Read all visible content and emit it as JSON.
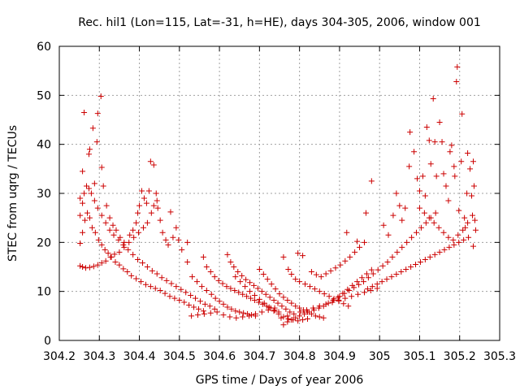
{
  "chart_data": {
    "type": "scatter",
    "title": "Rec. hil1 (Lon=115, Lat=-31, h=HE), days 304-305, 2006, window 001",
    "xlabel": "GPS time / Days of year 2006",
    "ylabel": "STEC from uqrg / TECUs",
    "xlim": [
      304.2,
      305.3
    ],
    "ylim": [
      0,
      60
    ],
    "x_ticks": [
      304.2,
      304.3,
      304.4,
      304.5,
      304.6,
      304.7,
      304.8,
      304.9,
      305,
      305.1,
      305.2,
      305.3
    ],
    "x_tick_labels": [
      "304.2",
      "304.3",
      "304.4",
      "304.5",
      "304.6",
      "304.7",
      "304.8",
      "304.9",
      "305",
      "305.1",
      "305.2",
      "305.3"
    ],
    "y_ticks": [
      0,
      10,
      20,
      30,
      40,
      50,
      60
    ],
    "y_tick_labels": [
      "0",
      "10",
      "20",
      "30",
      "40",
      "50",
      "60"
    ],
    "grid": true,
    "marker": "+",
    "color": "#cc0000",
    "points": [
      [
        304.252,
        15.2
      ],
      [
        304.258,
        15.0
      ],
      [
        304.266,
        14.8
      ],
      [
        304.276,
        14.9
      ],
      [
        304.286,
        15.1
      ],
      [
        304.296,
        15.4
      ],
      [
        304.306,
        15.8
      ],
      [
        304.316,
        16.2
      ],
      [
        304.328,
        17.0
      ],
      [
        304.338,
        17.6
      ],
      [
        304.35,
        18.0
      ],
      [
        304.362,
        19.0
      ],
      [
        304.374,
        20.0
      ],
      [
        304.386,
        21.0
      ],
      [
        304.398,
        22.0
      ],
      [
        304.41,
        23.0
      ],
      [
        304.42,
        24.0
      ],
      [
        304.43,
        26.0
      ],
      [
        304.436,
        27.5
      ],
      [
        304.444,
        28.5
      ],
      [
        304.252,
        19.8
      ],
      [
        304.258,
        22.0
      ],
      [
        304.264,
        24.5
      ],
      [
        304.27,
        26.0
      ],
      [
        304.276,
        25.0
      ],
      [
        304.282,
        23.0
      ],
      [
        304.29,
        22.0
      ],
      [
        304.298,
        20.5
      ],
      [
        304.306,
        19.5
      ],
      [
        304.314,
        18.5
      ],
      [
        304.322,
        17.8
      ],
      [
        304.33,
        17.0
      ],
      [
        304.34,
        16.0
      ],
      [
        304.35,
        15.4
      ],
      [
        304.36,
        14.6
      ],
      [
        304.37,
        14.0
      ],
      [
        304.38,
        13.2
      ],
      [
        304.392,
        12.6
      ],
      [
        304.404,
        12.0
      ],
      [
        304.416,
        11.4
      ],
      [
        304.428,
        11.0
      ],
      [
        304.44,
        10.6
      ],
      [
        304.452,
        10.2
      ],
      [
        304.464,
        9.6
      ],
      [
        304.476,
        9.0
      ],
      [
        304.488,
        8.6
      ],
      [
        304.5,
        8.2
      ],
      [
        304.512,
        7.8
      ],
      [
        304.524,
        7.2
      ],
      [
        304.536,
        6.8
      ],
      [
        304.548,
        6.4
      ],
      [
        304.56,
        6.0
      ],
      [
        304.252,
        25.5
      ],
      [
        304.258,
        28.0
      ],
      [
        304.262,
        30.0
      ],
      [
        304.268,
        31.5
      ],
      [
        304.274,
        31.0
      ],
      [
        304.28,
        30.0
      ],
      [
        304.288,
        28.5
      ],
      [
        304.296,
        27.0
      ],
      [
        304.306,
        25.5
      ],
      [
        304.316,
        24.0
      ],
      [
        304.326,
        22.5
      ],
      [
        304.336,
        21.5
      ],
      [
        304.348,
        20.5
      ],
      [
        304.36,
        19.5
      ],
      [
        304.372,
        18.5
      ],
      [
        304.384,
        17.5
      ],
      [
        304.396,
        16.5
      ],
      [
        304.408,
        15.8
      ],
      [
        304.42,
        15.0
      ],
      [
        304.432,
        14.2
      ],
      [
        304.444,
        13.6
      ],
      [
        304.456,
        12.8
      ],
      [
        304.468,
        12.2
      ],
      [
        304.48,
        11.6
      ],
      [
        304.492,
        11.0
      ],
      [
        304.504,
        10.4
      ],
      [
        304.516,
        9.8
      ],
      [
        304.528,
        9.2
      ],
      [
        304.54,
        8.6
      ],
      [
        304.552,
        8.0
      ],
      [
        304.564,
        7.4
      ],
      [
        304.576,
        7.0
      ],
      [
        304.588,
        6.4
      ],
      [
        304.252,
        29.0
      ],
      [
        304.258,
        34.5
      ],
      [
        304.262,
        46.5
      ],
      [
        304.274,
        38.0
      ],
      [
        304.276,
        39.0
      ],
      [
        304.284,
        43.3
      ],
      [
        304.288,
        32.0
      ],
      [
        304.294,
        40.5
      ],
      [
        304.296,
        46.3
      ],
      [
        304.304,
        49.8
      ],
      [
        304.306,
        35.3
      ],
      [
        304.31,
        31.5
      ],
      [
        304.318,
        27.5
      ],
      [
        304.326,
        25.0
      ],
      [
        304.334,
        23.5
      ],
      [
        304.342,
        22.5
      ],
      [
        304.352,
        21.0
      ],
      [
        304.362,
        20.0
      ],
      [
        304.376,
        21.5
      ],
      [
        304.384,
        22.5
      ],
      [
        304.392,
        24.0
      ],
      [
        304.396,
        26.0
      ],
      [
        304.4,
        27.5
      ],
      [
        304.406,
        30.5
      ],
      [
        304.412,
        29.0
      ],
      [
        304.418,
        28.0
      ],
      [
        304.424,
        30.5
      ],
      [
        304.428,
        36.5
      ],
      [
        304.436,
        35.8
      ],
      [
        304.442,
        30.0
      ],
      [
        304.446,
        27.0
      ],
      [
        304.452,
        24.5
      ],
      [
        304.458,
        22.0
      ],
      [
        304.466,
        20.5
      ],
      [
        304.472,
        19.5
      ],
      [
        304.478,
        26.2
      ],
      [
        304.484,
        21.0
      ],
      [
        304.492,
        23.0
      ],
      [
        304.498,
        20.5
      ],
      [
        304.506,
        18.5
      ],
      [
        304.52,
        20.0
      ],
      [
        304.52,
        16.0
      ],
      [
        304.532,
        13.0
      ],
      [
        304.544,
        12.0
      ],
      [
        304.556,
        11.0
      ],
      [
        304.568,
        10.2
      ],
      [
        304.58,
        9.4
      ],
      [
        304.59,
        8.6
      ],
      [
        304.6,
        8.0
      ],
      [
        304.61,
        7.4
      ],
      [
        304.62,
        6.8
      ],
      [
        304.63,
        6.4
      ],
      [
        304.64,
        6.0
      ],
      [
        304.65,
        5.8
      ],
      [
        304.66,
        5.6
      ],
      [
        304.67,
        5.4
      ],
      [
        304.68,
        5.2
      ],
      [
        304.69,
        5.0
      ],
      [
        304.56,
        17.0
      ],
      [
        304.568,
        15.0
      ],
      [
        304.578,
        14.0
      ],
      [
        304.588,
        13.0
      ],
      [
        304.598,
        12.2
      ],
      [
        304.608,
        11.6
      ],
      [
        304.618,
        11.0
      ],
      [
        304.628,
        10.6
      ],
      [
        304.638,
        10.2
      ],
      [
        304.648,
        9.8
      ],
      [
        304.658,
        9.4
      ],
      [
        304.668,
        9.0
      ],
      [
        304.678,
        8.6
      ],
      [
        304.688,
        8.2
      ],
      [
        304.698,
        7.8
      ],
      [
        304.708,
        7.4
      ],
      [
        304.718,
        7.0
      ],
      [
        304.728,
        6.6
      ],
      [
        304.738,
        6.2
      ],
      [
        304.748,
        5.8
      ],
      [
        304.62,
        17.5
      ],
      [
        304.628,
        16.0
      ],
      [
        304.636,
        15.0
      ],
      [
        304.646,
        14.0
      ],
      [
        304.656,
        13.2
      ],
      [
        304.666,
        12.4
      ],
      [
        304.676,
        11.8
      ],
      [
        304.686,
        11.2
      ],
      [
        304.696,
        10.6
      ],
      [
        304.706,
        10.0
      ],
      [
        304.716,
        9.4
      ],
      [
        304.726,
        8.8
      ],
      [
        304.736,
        8.2
      ],
      [
        304.746,
        7.6
      ],
      [
        304.756,
        7.0
      ],
      [
        304.766,
        6.4
      ],
      [
        304.776,
        5.8
      ],
      [
        304.64,
        13.0
      ],
      [
        304.652,
        12.0
      ],
      [
        304.664,
        11.0
      ],
      [
        304.676,
        10.0
      ],
      [
        304.688,
        9.2
      ],
      [
        304.7,
        8.4
      ],
      [
        304.712,
        7.6
      ],
      [
        304.724,
        6.8
      ],
      [
        304.736,
        6.0
      ],
      [
        304.748,
        5.4
      ],
      [
        304.76,
        4.8
      ],
      [
        304.772,
        4.4
      ],
      [
        304.784,
        4.2
      ],
      [
        304.796,
        4.0
      ],
      [
        304.808,
        4.2
      ],
      [
        304.82,
        4.4
      ],
      [
        304.7,
        14.5
      ],
      [
        304.71,
        13.5
      ],
      [
        304.72,
        12.5
      ],
      [
        304.73,
        11.5
      ],
      [
        304.74,
        10.5
      ],
      [
        304.75,
        9.5
      ],
      [
        304.76,
        8.8
      ],
      [
        304.77,
        8.2
      ],
      [
        304.78,
        7.6
      ],
      [
        304.79,
        7.0
      ],
      [
        304.8,
        6.6
      ],
      [
        304.81,
        6.2
      ],
      [
        304.82,
        5.8
      ],
      [
        304.83,
        5.4
      ],
      [
        304.84,
        5.0
      ],
      [
        304.85,
        4.8
      ],
      [
        304.86,
        4.6
      ],
      [
        304.76,
        17.0
      ],
      [
        304.772,
        14.5
      ],
      [
        304.78,
        13.5
      ],
      [
        304.79,
        12.5
      ],
      [
        304.796,
        17.8
      ],
      [
        304.8,
        12.0
      ],
      [
        304.808,
        17.3
      ],
      [
        304.814,
        11.5
      ],
      [
        304.826,
        11.0
      ],
      [
        304.838,
        10.5
      ],
      [
        304.85,
        10.0
      ],
      [
        304.862,
        9.5
      ],
      [
        304.874,
        9.0
      ],
      [
        304.886,
        8.5
      ],
      [
        304.898,
        8.0
      ],
      [
        304.91,
        7.5
      ],
      [
        304.922,
        7.0
      ],
      [
        304.76,
        3.2
      ],
      [
        304.77,
        3.8
      ],
      [
        304.78,
        4.2
      ],
      [
        304.79,
        4.6
      ],
      [
        304.8,
        5.0
      ],
      [
        304.812,
        5.4
      ],
      [
        304.824,
        5.8
      ],
      [
        304.836,
        6.2
      ],
      [
        304.848,
        6.6
      ],
      [
        304.86,
        7.0
      ],
      [
        304.872,
        7.6
      ],
      [
        304.884,
        8.2
      ],
      [
        304.896,
        8.8
      ],
      [
        304.908,
        9.6
      ],
      [
        304.92,
        10.4
      ],
      [
        304.932,
        11.2
      ],
      [
        304.944,
        12.0
      ],
      [
        304.956,
        12.8
      ],
      [
        304.968,
        13.6
      ],
      [
        304.98,
        14.4
      ],
      [
        304.83,
        14.0
      ],
      [
        304.842,
        13.4
      ],
      [
        304.854,
        13.0
      ],
      [
        304.866,
        13.6
      ],
      [
        304.878,
        14.2
      ],
      [
        304.89,
        14.8
      ],
      [
        304.902,
        15.4
      ],
      [
        304.914,
        16.2
      ],
      [
        304.926,
        17.0
      ],
      [
        304.938,
        18.0
      ],
      [
        304.95,
        19.0
      ],
      [
        304.962,
        20.0
      ],
      [
        304.918,
        22.0
      ],
      [
        304.944,
        20.2
      ],
      [
        304.966,
        26.0
      ],
      [
        304.98,
        32.5
      ],
      [
        304.9,
        9.0
      ],
      [
        304.912,
        9.6
      ],
      [
        304.924,
        10.2
      ],
      [
        304.936,
        10.8
      ],
      [
        304.948,
        11.4
      ],
      [
        304.96,
        12.0
      ],
      [
        304.972,
        12.8
      ],
      [
        304.984,
        13.6
      ],
      [
        304.996,
        14.4
      ],
      [
        305.008,
        15.2
      ],
      [
        305.02,
        16.0
      ],
      [
        305.032,
        17.0
      ],
      [
        305.044,
        18.0
      ],
      [
        305.056,
        19.0
      ],
      [
        305.068,
        20.0
      ],
      [
        305.08,
        21.0
      ],
      [
        305.092,
        22.0
      ],
      [
        305.104,
        23.0
      ],
      [
        305.116,
        24.0
      ],
      [
        305.128,
        25.0
      ],
      [
        305.14,
        26.0
      ],
      [
        304.97,
        10.5
      ],
      [
        304.982,
        11.0
      ],
      [
        304.994,
        11.5
      ],
      [
        305.006,
        12.0
      ],
      [
        305.018,
        12.5
      ],
      [
        305.03,
        13.0
      ],
      [
        305.042,
        13.5
      ],
      [
        305.054,
        14.0
      ],
      [
        305.066,
        14.5
      ],
      [
        305.078,
        15.0
      ],
      [
        305.09,
        15.5
      ],
      [
        305.102,
        16.0
      ],
      [
        305.114,
        16.5
      ],
      [
        305.126,
        17.0
      ],
      [
        305.138,
        17.5
      ],
      [
        305.15,
        18.0
      ],
      [
        305.162,
        18.5
      ],
      [
        305.174,
        19.0
      ],
      [
        305.186,
        19.5
      ],
      [
        305.198,
        20.0
      ],
      [
        305.21,
        20.5
      ],
      [
        305.222,
        21.0
      ],
      [
        305.234,
        19.2
      ],
      [
        305.01,
        23.5
      ],
      [
        305.022,
        21.5
      ],
      [
        305.034,
        25.5
      ],
      [
        305.042,
        30.0
      ],
      [
        305.05,
        27.5
      ],
      [
        305.056,
        24.5
      ],
      [
        305.064,
        27.0
      ],
      [
        305.074,
        35.5
      ],
      [
        305.076,
        42.5
      ],
      [
        305.086,
        38.5
      ],
      [
        305.094,
        33.0
      ],
      [
        305.1,
        30.5
      ],
      [
        305.108,
        33.5
      ],
      [
        305.114,
        29.5
      ],
      [
        305.118,
        43.5
      ],
      [
        305.124,
        40.8
      ],
      [
        305.128,
        36.0
      ],
      [
        305.134,
        49.3
      ],
      [
        305.138,
        40.5
      ],
      [
        305.142,
        33.5
      ],
      [
        305.15,
        44.5
      ],
      [
        305.156,
        40.5
      ],
      [
        305.16,
        34.0
      ],
      [
        305.166,
        31.5
      ],
      [
        305.172,
        28.5
      ],
      [
        305.176,
        38.5
      ],
      [
        305.18,
        39.8
      ],
      [
        305.186,
        35.5
      ],
      [
        305.188,
        33.5
      ],
      [
        305.192,
        52.8
      ],
      [
        305.194,
        55.8
      ],
      [
        305.198,
        26.5
      ],
      [
        305.204,
        36.5
      ],
      [
        305.206,
        46.2
      ],
      [
        305.212,
        25.0
      ],
      [
        305.214,
        23.0
      ],
      [
        305.218,
        30.0
      ],
      [
        305.22,
        38.2
      ],
      [
        305.226,
        35.0
      ],
      [
        305.23,
        29.5
      ],
      [
        305.234,
        36.5
      ],
      [
        305.236,
        31.5
      ],
      [
        305.238,
        24.5
      ],
      [
        305.24,
        22.5
      ],
      [
        305.1,
        27.0
      ],
      [
        305.112,
        26.0
      ],
      [
        305.124,
        25.0
      ],
      [
        305.136,
        24.0
      ],
      [
        305.148,
        23.0
      ],
      [
        305.16,
        22.0
      ],
      [
        305.172,
        21.0
      ],
      [
        305.184,
        20.5
      ],
      [
        305.196,
        21.5
      ],
      [
        305.208,
        22.5
      ],
      [
        305.22,
        24.0
      ],
      [
        305.232,
        25.5
      ],
      [
        304.53,
        5.0
      ],
      [
        304.546,
        5.2
      ],
      [
        304.562,
        5.4
      ],
      [
        304.578,
        5.6
      ],
      [
        304.594,
        5.8
      ],
      [
        304.61,
        5.2
      ],
      [
        304.626,
        4.8
      ],
      [
        304.642,
        4.6
      ],
      [
        304.658,
        4.8
      ],
      [
        304.674,
        5.0
      ],
      [
        304.69,
        5.4
      ],
      [
        304.706,
        5.8
      ],
      [
        304.722,
        6.2
      ],
      [
        304.738,
        6.6
      ],
      [
        304.754,
        4.6
      ],
      [
        304.77,
        5.0
      ],
      [
        304.786,
        5.4
      ],
      [
        304.802,
        5.8
      ],
      [
        304.818,
        6.2
      ],
      [
        304.834,
        6.6
      ],
      [
        304.85,
        7.0
      ],
      [
        304.866,
        7.4
      ],
      [
        304.882,
        7.8
      ],
      [
        304.898,
        8.2
      ],
      [
        304.914,
        8.6
      ],
      [
        304.93,
        9.0
      ],
      [
        304.946,
        9.4
      ],
      [
        304.962,
        9.8
      ],
      [
        304.978,
        10.2
      ],
      [
        304.994,
        10.6
      ]
    ]
  }
}
